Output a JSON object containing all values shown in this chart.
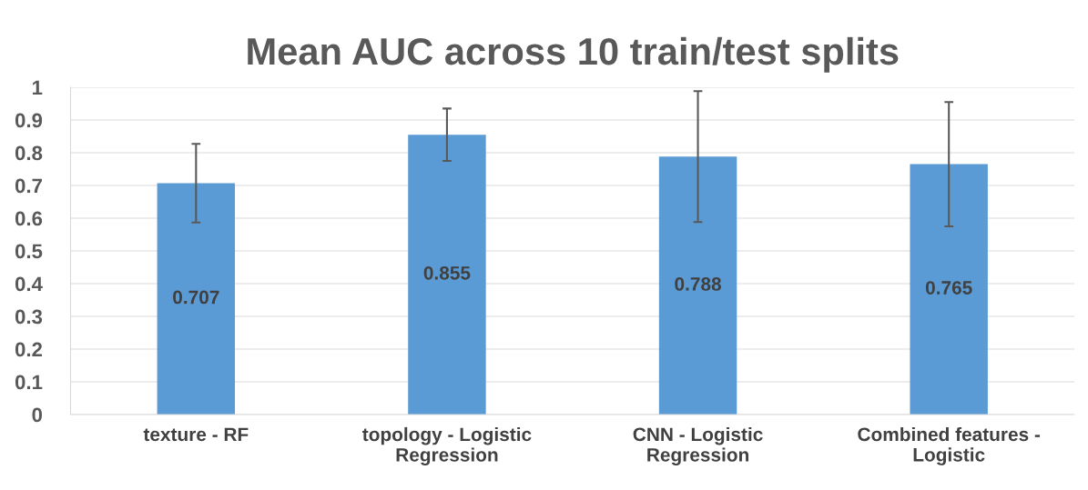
{
  "chart_data": {
    "type": "bar",
    "title": "Mean AUC across 10 train/test splits",
    "categories": [
      "texture - RF",
      "topology - Logistic\nRegression",
      "CNN - Logistic\nRegression",
      "Combined features -\nLogistic"
    ],
    "values": [
      0.707,
      0.855,
      0.788,
      0.765
    ],
    "errors": [
      0.12,
      0.08,
      0.2,
      0.19
    ],
    "color": "#5b9bd5",
    "data_labels": true,
    "ylim": [
      0,
      1
    ],
    "yticks": [
      0,
      0.1,
      0.2,
      0.3,
      0.4,
      0.5,
      0.6,
      0.7,
      0.8,
      0.9,
      1
    ],
    "grid": "y"
  }
}
